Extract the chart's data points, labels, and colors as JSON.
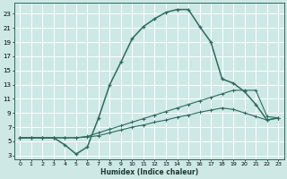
{
  "xlabel": "Humidex (Indice chaleur)",
  "xlim": [
    -0.5,
    23.5
  ],
  "ylim": [
    2.5,
    24.5
  ],
  "xticks": [
    0,
    1,
    2,
    3,
    4,
    5,
    6,
    7,
    8,
    9,
    10,
    11,
    12,
    13,
    14,
    15,
    16,
    17,
    18,
    19,
    20,
    21,
    22,
    23
  ],
  "yticks": [
    3,
    5,
    7,
    9,
    11,
    13,
    15,
    17,
    19,
    21,
    23
  ],
  "bg_color": "#cde8e5",
  "line_color": "#2e6b5e",
  "grid_color": "#ffffff",
  "main_x": [
    0,
    1,
    2,
    3,
    4,
    5,
    6,
    7,
    8,
    9,
    10,
    11,
    12,
    13,
    14,
    15,
    16,
    17,
    18,
    19,
    20,
    21,
    22,
    23
  ],
  "main_y": [
    5.5,
    5.5,
    5.5,
    5.5,
    4.5,
    3.2,
    4.2,
    8.3,
    13.0,
    16.2,
    19.5,
    21.2,
    22.3,
    23.2,
    23.6,
    23.6,
    21.2,
    19.0,
    13.8,
    13.2,
    12.0,
    10.2,
    8.0,
    8.3
  ],
  "line1_x": [
    0,
    1,
    2,
    3,
    4,
    5,
    6,
    7,
    8,
    9,
    10,
    11,
    12,
    13,
    14,
    15,
    16,
    17,
    18,
    19,
    20,
    21,
    22,
    23
  ],
  "line1_y": [
    5.5,
    5.5,
    5.5,
    5.5,
    5.5,
    5.5,
    5.7,
    6.2,
    6.7,
    7.2,
    7.7,
    8.2,
    8.7,
    9.2,
    9.7,
    10.2,
    10.7,
    11.2,
    11.7,
    12.2,
    12.2,
    12.2,
    8.5,
    8.3
  ],
  "line2_x": [
    0,
    1,
    2,
    3,
    4,
    5,
    6,
    7,
    8,
    9,
    10,
    11,
    12,
    13,
    14,
    15,
    16,
    17,
    18,
    19,
    20,
    21,
    22,
    23
  ],
  "line2_y": [
    5.5,
    5.5,
    5.5,
    5.5,
    5.5,
    5.5,
    5.6,
    5.8,
    6.2,
    6.6,
    7.0,
    7.3,
    7.7,
    8.0,
    8.4,
    8.7,
    9.1,
    9.4,
    9.7,
    9.5,
    9.0,
    8.5,
    8.0,
    8.3
  ]
}
